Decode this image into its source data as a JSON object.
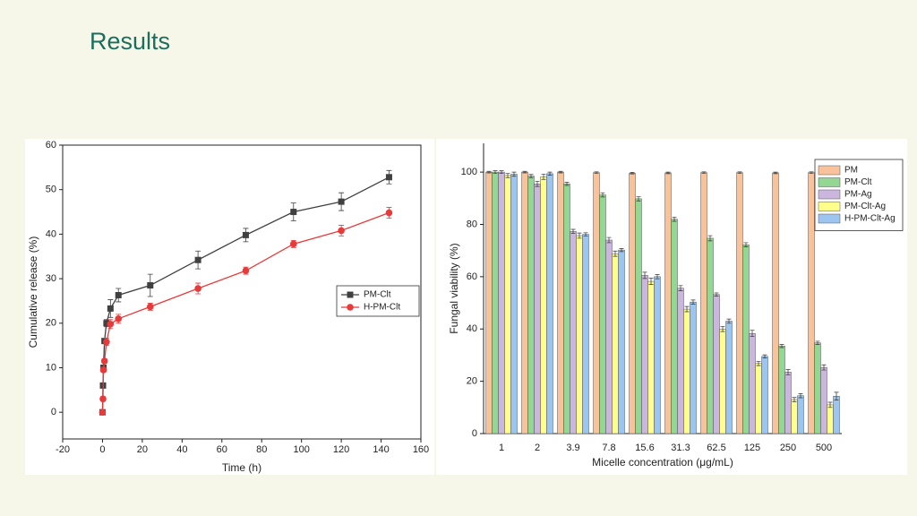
{
  "title": "Results",
  "chart_data": [
    {
      "type": "line",
      "xlabel": "Time (h)",
      "ylabel": "Cumulative release (%)",
      "x": [
        0,
        0.25,
        0.5,
        1,
        2,
        4,
        8,
        24,
        48,
        72,
        96,
        120,
        144
      ],
      "series": [
        {
          "name": "PM-Clt",
          "color": "#404040",
          "marker": "square",
          "values": [
            0,
            6,
            10,
            16,
            20,
            23.3,
            26.3,
            28.5,
            34.2,
            39.8,
            45,
            47.3,
            52.8
          ],
          "errors": [
            0,
            0.5,
            0.5,
            0.5,
            0.8,
            2,
            1.5,
            2.5,
            2,
            1.5,
            2,
            2,
            1.5
          ]
        },
        {
          "name": "H-PM-Clt",
          "color": "#e83a3a",
          "marker": "circle",
          "values": [
            0,
            3,
            9.5,
            11.5,
            15.8,
            19.8,
            21,
            23.7,
            27.8,
            31.8,
            37.8,
            40.8,
            44.8
          ],
          "errors": [
            0,
            0.5,
            0.5,
            0.5,
            0.8,
            1,
            1,
            0.8,
            1.2,
            0.8,
            0.8,
            1.2,
            1.2
          ]
        }
      ],
      "xlim": [
        -20,
        160
      ],
      "xticks": [
        -20,
        0,
        20,
        40,
        60,
        80,
        100,
        120,
        140,
        160
      ],
      "ylim": [
        -6,
        60
      ],
      "yticks": [
        0,
        10,
        20,
        30,
        40,
        50,
        60
      ],
      "legend": "center right"
    },
    {
      "type": "bar",
      "xlabel": "Micelle concentration (μg/mL)",
      "ylabel": "Fungal viability (%)",
      "categories": [
        "1",
        "2",
        "3.9",
        "7.8",
        "15.6",
        "31.3",
        "62.5",
        "125",
        "250",
        "500"
      ],
      "series": [
        {
          "name": "PM",
          "color": "#f8c29a",
          "values": [
            100,
            100,
            100,
            99.8,
            99.6,
            99.7,
            99.8,
            99.8,
            99.7,
            99.8
          ],
          "errors": [
            0.3,
            0.3,
            0.3,
            0.3,
            0.3,
            0.3,
            0.3,
            0.3,
            0.3,
            0.3
          ]
        },
        {
          "name": "PM-Clt",
          "color": "#92d892",
          "values": [
            100,
            98.5,
            95.5,
            91.3,
            89.8,
            82,
            74.7,
            72.2,
            33.5,
            34.7
          ],
          "errors": [
            0.5,
            0.6,
            0.6,
            0.8,
            0.8,
            0.8,
            1,
            0.8,
            0.6,
            0.6
          ]
        },
        {
          "name": "PM-Ag",
          "color": "#cbb6de",
          "values": [
            100,
            95.5,
            77.3,
            74,
            60.5,
            55.6,
            53.2,
            38.3,
            23.5,
            25.3
          ],
          "errors": [
            0.5,
            1,
            0.8,
            1,
            1.2,
            1,
            0.6,
            1.2,
            1,
            1
          ]
        },
        {
          "name": "PM-Clt-Ag",
          "color": "#ffff8c",
          "values": [
            98.7,
            98.2,
            75.7,
            68.8,
            58.2,
            47.6,
            40,
            26.8,
            13,
            11
          ],
          "errors": [
            0.8,
            1,
            1,
            1,
            1.2,
            1,
            1,
            0.8,
            0.8,
            1
          ]
        },
        {
          "name": "H-PM-Clt-Ag",
          "color": "#9cc6ef",
          "values": [
            99.2,
            99.4,
            76.2,
            70.2,
            60,
            50.3,
            43,
            29.5,
            14.5,
            14.3
          ],
          "errors": [
            0.8,
            0.6,
            0.6,
            0.6,
            0.8,
            0.8,
            0.8,
            0.6,
            0.8,
            1.5
          ]
        }
      ],
      "ylim": [
        0,
        111
      ],
      "yticks": [
        0,
        20,
        40,
        60,
        80,
        100
      ],
      "legend": "upper right"
    }
  ]
}
